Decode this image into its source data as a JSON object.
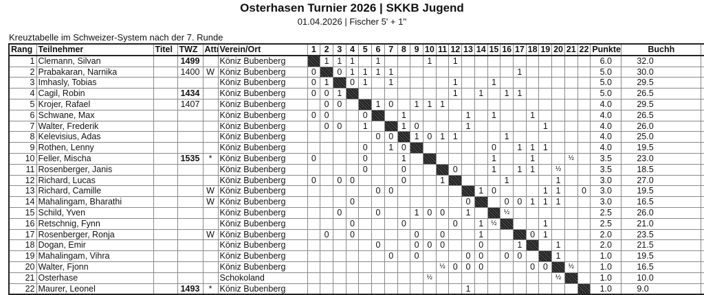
{
  "title": "Osterhasen Turnier 2026 | SKKB Jugend",
  "subtitle": "01.04.2026 | Fischer 5' + 1''",
  "caption": "Kreuztabelle im Schweizer-System nach der 7. Runde",
  "headers": {
    "rang": "Rang",
    "name": "Teilnehmer",
    "titel": "Titel",
    "twz": "TWZ",
    "attr": "Attr",
    "verein": "Verein/Ort",
    "rounds": [
      "1",
      "2",
      "3",
      "4",
      "5",
      "6",
      "7",
      "8",
      "9",
      "10",
      "11",
      "12",
      "13",
      "14",
      "15",
      "16",
      "17",
      "18",
      "19",
      "20",
      "21",
      "22"
    ],
    "punkte": "Punkte",
    "buchh": "Buchh"
  },
  "rows": [
    {
      "rang": "1",
      "name": "Clemann, Silvan",
      "titel": "",
      "twz": "1499",
      "twz_bold": true,
      "attr": "",
      "verein": "Köniz Bubenberg",
      "results": [
        "",
        "1",
        "1",
        "1",
        "",
        "1",
        "",
        "",
        "",
        "1",
        "",
        "1",
        "",
        "",
        "",
        "",
        "",
        "",
        "",
        "",
        "",
        ""
      ],
      "punkte": "6.0",
      "buchh": "32.0"
    },
    {
      "rang": "2",
      "name": "Prabakaran, Narnika",
      "titel": "",
      "twz": "1400",
      "twz_bold": false,
      "attr": "W",
      "verein": "Köniz Bubenberg",
      "results": [
        "0",
        "",
        "0",
        "1",
        "1",
        "1",
        "1",
        "",
        "",
        "",
        "",
        "",
        "",
        "",
        "",
        "",
        "1",
        "",
        "",
        "",
        "",
        ""
      ],
      "punkte": "5.0",
      "buchh": "30.0"
    },
    {
      "rang": "3",
      "name": "Imhasly, Tobias",
      "titel": "",
      "twz": "",
      "twz_bold": false,
      "attr": "",
      "verein": "Köniz Bubenberg",
      "results": [
        "0",
        "1",
        "",
        "0",
        "1",
        "",
        "1",
        "",
        "",
        "",
        "",
        "1",
        "",
        "",
        "1",
        "",
        "",
        "",
        "",
        "",
        "",
        ""
      ],
      "punkte": "5.0",
      "buchh": "29.5"
    },
    {
      "rang": "4",
      "name": "Cagil, Robin",
      "titel": "",
      "twz": "1434",
      "twz_bold": true,
      "attr": "",
      "verein": "Köniz Bubenberg",
      "results": [
        "0",
        "0",
        "1",
        "",
        "",
        "",
        "",
        "",
        "",
        "",
        "",
        "1",
        "",
        "1",
        "",
        "1",
        "1",
        "",
        "",
        "",
        "",
        ""
      ],
      "punkte": "5.0",
      "buchh": "26.5"
    },
    {
      "rang": "5",
      "name": "Krojer, Rafael",
      "titel": "",
      "twz": "1407",
      "twz_bold": false,
      "attr": "",
      "verein": "Köniz Bubenberg",
      "results": [
        "",
        "0",
        "0",
        "",
        "",
        "1",
        "0",
        "",
        "1",
        "1",
        "1",
        "",
        "",
        "",
        "",
        "",
        "",
        "",
        "",
        "",
        "",
        ""
      ],
      "punkte": "4.0",
      "buchh": "29.5"
    },
    {
      "rang": "6",
      "name": "Schwane, Max",
      "titel": "",
      "twz": "",
      "twz_bold": false,
      "attr": "",
      "verein": "Köniz Bubenberg",
      "results": [
        "0",
        "0",
        "",
        "",
        "0",
        "",
        "",
        "1",
        "",
        "",
        "",
        "",
        "1",
        "",
        "1",
        "",
        "",
        "1",
        "",
        "",
        "",
        ""
      ],
      "punkte": "4.0",
      "buchh": "26.5"
    },
    {
      "rang": "7",
      "name": "Walter, Frederik",
      "titel": "",
      "twz": "",
      "twz_bold": false,
      "attr": "",
      "verein": "Köniz Bubenberg",
      "results": [
        "",
        "0",
        "0",
        "",
        "1",
        "",
        "",
        "1",
        "0",
        "",
        "",
        "",
        "1",
        "",
        "",
        "",
        "",
        "",
        "1",
        "",
        "",
        ""
      ],
      "punkte": "4.0",
      "buchh": "26.0"
    },
    {
      "rang": "8",
      "name": "Kelevisius, Adas",
      "titel": "",
      "twz": "",
      "twz_bold": false,
      "attr": "",
      "verein": "Köniz Bubenberg",
      "results": [
        "",
        "",
        "",
        "",
        "",
        "0",
        "0",
        "",
        "1",
        "0",
        "1",
        "1",
        "",
        "",
        "",
        "1",
        "",
        "",
        "",
        "",
        "",
        ""
      ],
      "punkte": "4.0",
      "buchh": "25.0"
    },
    {
      "rang": "9",
      "name": "Rothen, Lenny",
      "titel": "",
      "twz": "",
      "twz_bold": false,
      "attr": "",
      "verein": "Köniz Bubenberg",
      "results": [
        "",
        "",
        "",
        "",
        "0",
        "",
        "1",
        "0",
        "",
        "",
        "",
        "",
        "",
        "",
        "0",
        "",
        "1",
        "1",
        "1",
        "",
        "",
        ""
      ],
      "punkte": "4.0",
      "buchh": "19.5"
    },
    {
      "rang": "10",
      "name": "Feller, Mischa",
      "titel": "",
      "twz": "1535",
      "twz_bold": true,
      "attr": "*",
      "verein": "Köniz Bubenberg",
      "results": [
        "0",
        "",
        "",
        "",
        "0",
        "",
        "",
        "1",
        "",
        "",
        "",
        "",
        "",
        "",
        "1",
        "",
        "",
        "1",
        "",
        "",
        "½",
        ""
      ],
      "punkte": "3.5",
      "buchh": "23.0"
    },
    {
      "rang": "11",
      "name": "Rosenberger, Janis",
      "titel": "",
      "twz": "",
      "twz_bold": false,
      "attr": "",
      "verein": "Köniz Bubenberg",
      "results": [
        "",
        "",
        "",
        "",
        "0",
        "",
        "",
        "0",
        "",
        "",
        "",
        "0",
        "",
        "",
        "1",
        "",
        "1",
        "1",
        "",
        "½",
        "",
        ""
      ],
      "punkte": "3.5",
      "buchh": "18.5"
    },
    {
      "rang": "12",
      "name": "Richard, Lucas",
      "titel": "",
      "twz": "",
      "twz_bold": false,
      "attr": "",
      "verein": "Köniz Bubenberg",
      "results": [
        "0",
        "",
        "0",
        "0",
        "",
        "",
        "",
        "0",
        "",
        "",
        "1",
        "",
        "",
        "",
        "",
        "1",
        "",
        "",
        "",
        "1",
        "",
        ""
      ],
      "punkte": "3.0",
      "buchh": "27.0"
    },
    {
      "rang": "13",
      "name": "Richard, Camille",
      "titel": "",
      "twz": "",
      "twz_bold": false,
      "attr": "W",
      "verein": "Köniz Bubenberg",
      "results": [
        "",
        "",
        "",
        "",
        "",
        "0",
        "0",
        "",
        "",
        "",
        "",
        "",
        "",
        "1",
        "0",
        "",
        "",
        "",
        "1",
        "1",
        "",
        "0"
      ],
      "punkte": "3.0",
      "buchh": "19.5"
    },
    {
      "rang": "14",
      "name": "Mahalingam, Bharathi",
      "titel": "",
      "twz": "",
      "twz_bold": false,
      "attr": "W",
      "verein": "Köniz Bubenberg",
      "results": [
        "",
        "",
        "",
        "0",
        "",
        "",
        "",
        "",
        "",
        "",
        "",
        "",
        "0",
        "",
        "",
        "0",
        "0",
        "1",
        "1",
        "1",
        "",
        ""
      ],
      "punkte": "3.0",
      "buchh": "16.5"
    },
    {
      "rang": "15",
      "name": "Schild, Yven",
      "titel": "",
      "twz": "",
      "twz_bold": false,
      "attr": "",
      "verein": "Köniz Bubenberg",
      "results": [
        "",
        "",
        "0",
        "",
        "",
        "0",
        "",
        "",
        "1",
        "0",
        "0",
        "",
        "1",
        "",
        "",
        "½",
        "",
        "",
        "",
        "",
        "",
        ""
      ],
      "punkte": "2.5",
      "buchh": "26.0"
    },
    {
      "rang": "16",
      "name": "Retschnig, Fynn",
      "titel": "",
      "twz": "",
      "twz_bold": false,
      "attr": "",
      "verein": "Köniz Bubenberg",
      "results": [
        "",
        "",
        "",
        "0",
        "",
        "",
        "",
        "0",
        "",
        "",
        "",
        "0",
        "",
        "1",
        "½",
        "",
        "",
        "",
        "1",
        "",
        "",
        ""
      ],
      "punkte": "2.5",
      "buchh": "21.0"
    },
    {
      "rang": "17",
      "name": "Rosenberger, Ronja",
      "titel": "",
      "twz": "",
      "twz_bold": false,
      "attr": "W",
      "verein": "Köniz Bubenberg",
      "results": [
        "",
        "0",
        "",
        "0",
        "",
        "",
        "",
        "",
        "0",
        "",
        "0",
        "",
        "",
        "1",
        "",
        "",
        "",
        "0",
        "1",
        "",
        "",
        ""
      ],
      "punkte": "2.0",
      "buchh": "23.5"
    },
    {
      "rang": "18",
      "name": "Dogan, Emir",
      "titel": "",
      "twz": "",
      "twz_bold": false,
      "attr": "",
      "verein": "Köniz Bubenberg",
      "results": [
        "",
        "",
        "",
        "",
        "",
        "0",
        "",
        "",
        "0",
        "0",
        "0",
        "",
        "",
        "0",
        "",
        "",
        "1",
        "",
        "",
        "1",
        "",
        ""
      ],
      "punkte": "2.0",
      "buchh": "21.5"
    },
    {
      "rang": "19",
      "name": "Mahalingam, Vihra",
      "titel": "",
      "twz": "",
      "twz_bold": false,
      "attr": "",
      "verein": "Köniz Bubenberg",
      "results": [
        "",
        "",
        "",
        "",
        "",
        "",
        "0",
        "",
        "0",
        "",
        "",
        "",
        "0",
        "0",
        "",
        "0",
        "0",
        "",
        "",
        "1",
        "",
        ""
      ],
      "punkte": "1.0",
      "buchh": "19.5"
    },
    {
      "rang": "20",
      "name": "Walter, Fjonn",
      "titel": "",
      "twz": "",
      "twz_bold": false,
      "attr": "",
      "verein": "Köniz Bubenberg",
      "results": [
        "",
        "",
        "",
        "",
        "",
        "",
        "",
        "",
        "",
        "",
        "½",
        "0",
        "0",
        "0",
        "",
        "",
        "",
        "0",
        "0",
        "",
        "½",
        ""
      ],
      "punkte": "1.0",
      "buchh": "16.5"
    },
    {
      "rang": "21",
      "name": "Osterhase",
      "titel": "",
      "twz": "",
      "twz_bold": false,
      "attr": "",
      "verein": "Schokoland",
      "results": [
        "",
        "",
        "",
        "",
        "",
        "",
        "",
        "",
        "",
        "½",
        "",
        "",
        "",
        "",
        "",
        "",
        "",
        "",
        "",
        "½",
        "",
        ""
      ],
      "punkte": "1.0",
      "buchh": "10.0"
    },
    {
      "rang": "22",
      "name": "Maurer, Leonel",
      "titel": "",
      "twz": "1493",
      "twz_bold": true,
      "attr": "*",
      "verein": "Köniz Bubenberg",
      "results": [
        "",
        "",
        "",
        "",
        "",
        "",
        "",
        "",
        "",
        "",
        "",
        "",
        "1",
        "",
        "",
        "",
        "",
        "",
        "",
        "",
        "",
        ""
      ],
      "punkte": "1.0",
      "buchh": "9.0"
    }
  ]
}
